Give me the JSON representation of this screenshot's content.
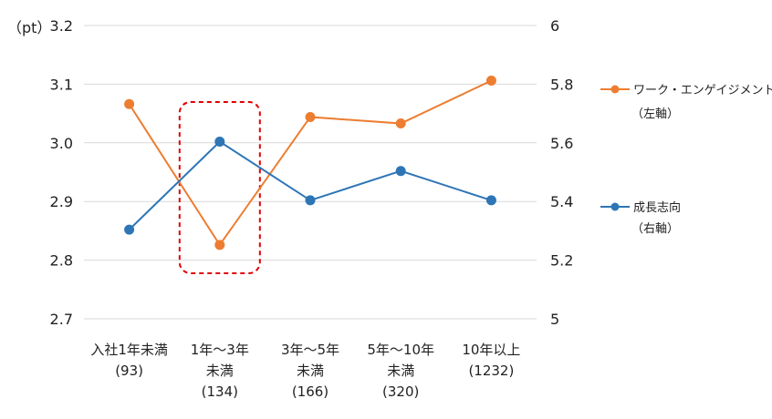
{
  "chart_data": {
    "type": "line",
    "unit_label": "（pt）",
    "categories": [
      [
        "入社1年未満",
        "(93)"
      ],
      [
        "1年～3年",
        "未満",
        "(134)"
      ],
      [
        "3年～5年",
        "未満",
        "(166)"
      ],
      [
        "5年～10年",
        "未満",
        "(320)"
      ],
      [
        "10年以上",
        "(1232)"
      ]
    ],
    "y_left": {
      "min": 2.7,
      "max": 3.2,
      "ticks": [
        "2.7",
        "2.8",
        "2.9",
        "3.0",
        "3.1",
        "3.2"
      ]
    },
    "y_right": {
      "min": 5,
      "max": 6,
      "ticks": [
        "5",
        "5.2",
        "5.4",
        "5.6",
        "5.8",
        "6"
      ]
    },
    "series": [
      {
        "name": "ワーク・エンゲイジメント",
        "axis_note": "（左軸）",
        "axis": "left",
        "color": "#ED7D31",
        "values": [
          3.066,
          2.826,
          3.044,
          3.033,
          3.106
        ]
      },
      {
        "name": "成長志向",
        "axis_note": "（右軸）",
        "axis": "right",
        "color": "#2E75B6",
        "values": [
          5.304,
          5.604,
          5.404,
          5.504,
          5.404
        ]
      }
    ],
    "highlight_category_index": 1,
    "highlight_color": "#E00000",
    "gridlines": true,
    "legend_position": "right"
  }
}
